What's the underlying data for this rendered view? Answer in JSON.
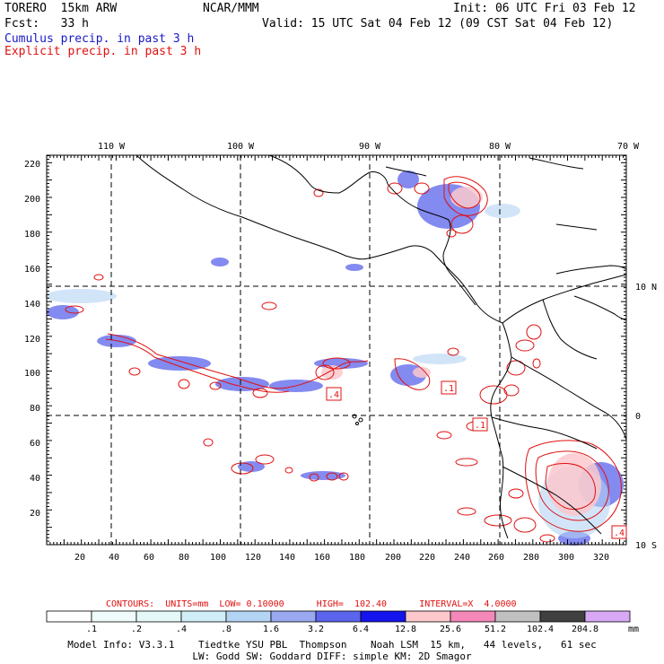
{
  "header": {
    "model_name": "TORERO  15km ARW",
    "org": "NCAR/MMM",
    "init": "Init: 06 UTC Fri 03 Feb 12",
    "fcst": "Fcst:   33 h",
    "valid": "Valid: 15 UTC Sat 04 Feb 12 (09 CST Sat 04 Feb 12)",
    "field1": "Cumulus precip. in past 3 h",
    "field2": "Explicit precip. in past 3 h",
    "field1_color": "#1818c8",
    "field2_color": "#e01010"
  },
  "map": {
    "lon_labels": [
      "110 W",
      "100 W",
      "90 W",
      "80 W",
      "70 W"
    ],
    "lat_labels": [
      "10 N",
      "0",
      "10 S"
    ],
    "grid_x_labels": [
      "20",
      "40",
      "60",
      "80",
      "100",
      "120",
      "140",
      "160",
      "180",
      "200",
      "220",
      "240",
      "260",
      "280",
      "300",
      "320"
    ],
    "grid_y_labels": [
      "20",
      "40",
      "60",
      "80",
      "100",
      "120",
      "140",
      "160",
      "180",
      "200",
      "220"
    ],
    "contour_labels": [
      ".4",
      ".1",
      ".1",
      ".4"
    ]
  },
  "contours_info": {
    "text": "CONTOURS:  UNITS=mm  LOW= 0.10000      HIGH=  102.40      INTERVAL=X  4.0000"
  },
  "colorbar": {
    "unit": "mm",
    "labels": [
      ".1",
      ".2",
      ".4",
      ".8",
      "1.6",
      "3.2",
      "6.4",
      "12.8",
      "25.6",
      "51.2",
      "102.4",
      "204.8"
    ],
    "colors": [
      "#ffffff",
      "#f0fcfc",
      "#e4f8f8",
      "#d0eef8",
      "#b4d4f4",
      "#9aa8f0",
      "#5a64ec",
      "#1414ec",
      "#fcc8cc",
      "#f488b8",
      "#c0c0c0",
      "#404040",
      "#d8a8f4"
    ]
  },
  "footer": {
    "line1": "Model Info: V3.3.1    Tiedtke YSU PBL  Thompson    Noah LSM  15 km,   44 levels,   61 sec",
    "line2": "LW: Godd SW: Goddard DIFF: simple KM: 2D Smagor"
  }
}
